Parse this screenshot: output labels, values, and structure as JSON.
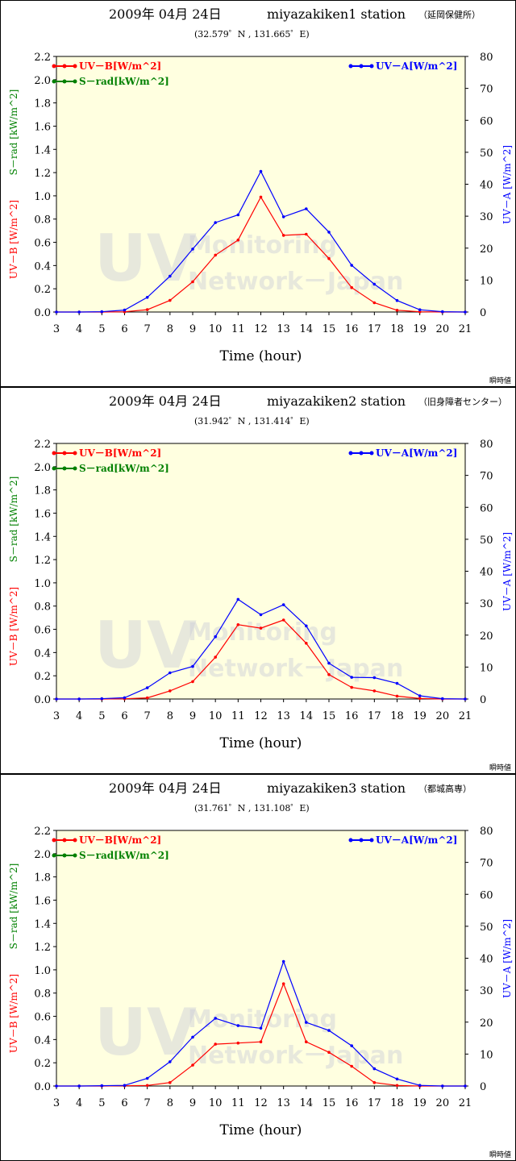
{
  "chart_data": [
    {
      "type": "line",
      "title_date": "2009年 04月 24日",
      "title_station": "miyazakiken1 station",
      "title_site": "（延岡保健所）",
      "coords": "(32.579゜N , 131.665゜E)",
      "xlabel": "Time (hour)",
      "ylabel_left_b": "UV－B [W/m^2]",
      "ylabel_left_s": "S－rad [kW/m^2]",
      "ylabel_right": "UV－A [W/m^2]",
      "legend_uvb": "UV－B[W/m^2]",
      "legend_srad": "S－rad[kW/m^2]",
      "legend_uva": "UV－A[W/m^2]",
      "note": "瞬時値",
      "watermark_big": "UV",
      "watermark_line1": "Monitoring",
      "watermark_line2": "Network－Japan",
      "x": [
        3,
        4,
        5,
        6,
        7,
        8,
        9,
        10,
        11,
        12,
        13,
        14,
        15,
        16,
        17,
        18,
        19,
        20,
        21
      ],
      "xlim": [
        3,
        21
      ],
      "ylim_left": [
        0,
        2.2
      ],
      "ylim_right": [
        0,
        80
      ],
      "left_ticks": [
        "0.0",
        "0.2",
        "0.4",
        "0.6",
        "0.8",
        "1.0",
        "1.2",
        "1.4",
        "1.6",
        "1.8",
        "2.0",
        "2.2"
      ],
      "right_ticks": [
        "0",
        "10",
        "20",
        "30",
        "40",
        "50",
        "60",
        "70",
        "80"
      ],
      "x_ticks": [
        "3",
        "4",
        "5",
        "6",
        "7",
        "8",
        "9",
        "10",
        "11",
        "12",
        "13",
        "14",
        "15",
        "16",
        "17",
        "18",
        "19",
        "20",
        "21"
      ],
      "series": [
        {
          "name": "UV－B[W/m^2]",
          "axis": "left",
          "color": "#ff0000",
          "values": [
            0,
            0,
            0,
            0.002,
            0.02,
            0.1,
            0.26,
            0.49,
            0.62,
            0.99,
            0.66,
            0.67,
            0.46,
            0.21,
            0.08,
            0.015,
            0.002,
            0,
            0
          ]
        },
        {
          "name": "UV－A[W/m^2]",
          "axis": "right",
          "color": "#0000ff",
          "values": [
            0,
            0,
            0.1,
            0.6,
            4.6,
            11.2,
            19.7,
            28.0,
            30.4,
            44.0,
            29.8,
            32.3,
            25.0,
            14.6,
            8.7,
            3.6,
            0.7,
            0.1,
            0
          ]
        }
      ]
    },
    {
      "type": "line",
      "title_date": "2009年 04月 24日",
      "title_station": "miyazakiken2 station",
      "title_site": "（旧身障者センター）",
      "coords": "(31.942゜N , 131.414゜E)",
      "xlabel": "Time (hour)",
      "ylabel_left_b": "UV－B [W/m^2]",
      "ylabel_left_s": "S－rad [kW/m^2]",
      "ylabel_right": "UV－A [W/m^2]",
      "legend_uvb": "UV－B[W/m^2]",
      "legend_srad": "S－rad[kW/m^2]",
      "legend_uva": "UV－A[W/m^2]",
      "note": "瞬時値",
      "watermark_big": "UV",
      "watermark_line1": "Monitoring",
      "watermark_line2": "Network－Japan",
      "x": [
        3,
        4,
        5,
        6,
        7,
        8,
        9,
        10,
        11,
        12,
        13,
        14,
        15,
        16,
        17,
        18,
        19,
        20,
        21
      ],
      "xlim": [
        3,
        21
      ],
      "ylim_left": [
        0,
        2.2
      ],
      "ylim_right": [
        0,
        80
      ],
      "left_ticks": [
        "0.0",
        "0.2",
        "0.4",
        "0.6",
        "0.8",
        "1.0",
        "1.2",
        "1.4",
        "1.6",
        "1.8",
        "2.0",
        "2.2"
      ],
      "right_ticks": [
        "0",
        "10",
        "20",
        "30",
        "40",
        "50",
        "60",
        "70",
        "80"
      ],
      "x_ticks": [
        "3",
        "4",
        "5",
        "6",
        "7",
        "8",
        "9",
        "10",
        "11",
        "12",
        "13",
        "14",
        "15",
        "16",
        "17",
        "18",
        "19",
        "20",
        "21"
      ],
      "series": [
        {
          "name": "UV－B[W/m^2]",
          "axis": "left",
          "color": "#ff0000",
          "values": [
            0,
            0,
            0,
            0.002,
            0.01,
            0.07,
            0.15,
            0.36,
            0.64,
            0.61,
            0.68,
            0.48,
            0.21,
            0.1,
            0.07,
            0.025,
            0.005,
            0,
            0
          ]
        },
        {
          "name": "UV－A[W/m^2]",
          "axis": "right",
          "color": "#0000ff",
          "values": [
            0,
            0,
            0.1,
            0.4,
            3.5,
            8.2,
            10.2,
            19.5,
            31.2,
            26.4,
            29.5,
            22.9,
            11.2,
            6.8,
            6.7,
            4.9,
            1.0,
            0.1,
            0
          ]
        }
      ]
    },
    {
      "type": "line",
      "title_date": "2009年 04月 24日",
      "title_station": "miyazakiken3 station",
      "title_site": "（都城高専）",
      "coords": "(31.761゜N , 131.108゜E)",
      "xlabel": "Time (hour)",
      "ylabel_left_b": "UV－B [W/m^2]",
      "ylabel_left_s": "S－rad [kW/m^2]",
      "ylabel_right": "UV－A [W/m^2]",
      "legend_uvb": "UV－B[W/m^2]",
      "legend_srad": "S－rad[kW/m^2]",
      "legend_uva": "UV－A[W/m^2]",
      "note": "瞬時値",
      "watermark_big": "UV",
      "watermark_line1": "Monitoring",
      "watermark_line2": "Network－Japan",
      "x": [
        3,
        4,
        5,
        6,
        7,
        8,
        9,
        10,
        11,
        12,
        13,
        14,
        15,
        16,
        17,
        18,
        19,
        20,
        21
      ],
      "xlim": [
        3,
        21
      ],
      "ylim_left": [
        0,
        2.2
      ],
      "ylim_right": [
        0,
        80
      ],
      "left_ticks": [
        "0.0",
        "0.2",
        "0.4",
        "0.6",
        "0.8",
        "1.0",
        "1.2",
        "1.4",
        "1.6",
        "1.8",
        "2.0",
        "2.2"
      ],
      "right_ticks": [
        "0",
        "10",
        "20",
        "30",
        "40",
        "50",
        "60",
        "70",
        "80"
      ],
      "x_ticks": [
        "3",
        "4",
        "5",
        "6",
        "7",
        "8",
        "9",
        "10",
        "11",
        "12",
        "13",
        "14",
        "15",
        "16",
        "17",
        "18",
        "19",
        "20",
        "21"
      ],
      "series": [
        {
          "name": "UV－B[W/m^2]",
          "axis": "left",
          "color": "#ff0000",
          "values": [
            0,
            0,
            0,
            0.002,
            0.005,
            0.03,
            0.18,
            0.36,
            0.37,
            0.38,
            0.88,
            0.38,
            0.29,
            0.17,
            0.03,
            0.005,
            0,
            0,
            0
          ]
        },
        {
          "name": "UV－A[W/m^2]",
          "axis": "right",
          "color": "#0000ff",
          "values": [
            0,
            0,
            0.1,
            0.2,
            2.4,
            7.6,
            15.3,
            21.2,
            18.9,
            18.1,
            39.0,
            19.9,
            17.4,
            12.6,
            5.4,
            2.2,
            0.2,
            0,
            0
          ]
        }
      ]
    }
  ]
}
